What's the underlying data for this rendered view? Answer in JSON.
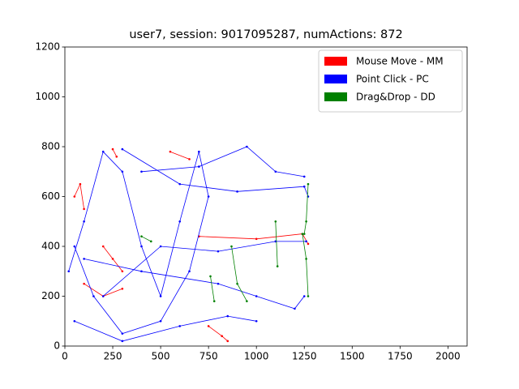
{
  "chart_data": {
    "type": "line",
    "title": "user7, session: 9017095287, numActions: 872",
    "xlim": [
      0,
      2100
    ],
    "ylim": [
      0,
      1200
    ],
    "xticks": [
      0,
      250,
      500,
      750,
      1000,
      1250,
      1500,
      1750,
      2000
    ],
    "yticks": [
      0,
      200,
      400,
      600,
      800,
      1000,
      1200
    ],
    "legend": "upper right",
    "series": [
      {
        "name": "Mouse Move - MM",
        "color": "#ff0000",
        "x": [
          50,
          80,
          100,
          null,
          200,
          250,
          300,
          null,
          750,
          820,
          850,
          null,
          250,
          270,
          null,
          700,
          1000,
          1240,
          1270,
          null,
          650,
          550,
          null,
          100,
          200,
          300
        ],
        "values": [
          600,
          650,
          550,
          null,
          400,
          350,
          300,
          null,
          80,
          40,
          20,
          null,
          790,
          760,
          null,
          440,
          430,
          450,
          410,
          null,
          750,
          780,
          null,
          250,
          200,
          230
        ]
      },
      {
        "name": "Point Click - PC",
        "color": "#0000ff",
        "x": [
          20,
          100,
          200,
          300,
          400,
          500,
          600,
          700,
          750,
          650,
          500,
          300,
          150,
          50,
          null,
          300,
          600,
          900,
          1250,
          1270,
          null,
          100,
          400,
          800,
          1000,
          1200,
          1250,
          null,
          200,
          500,
          800,
          1100,
          1260,
          null,
          400,
          700,
          950,
          1100,
          1250,
          null,
          50,
          300,
          600,
          850,
          1000
        ],
        "values": [
          300,
          500,
          780,
          700,
          400,
          200,
          500,
          780,
          600,
          300,
          100,
          50,
          200,
          400,
          null,
          790,
          650,
          620,
          640,
          600,
          null,
          350,
          300,
          250,
          200,
          150,
          200,
          null,
          200,
          400,
          380,
          420,
          420,
          null,
          700,
          720,
          800,
          700,
          680,
          null,
          100,
          20,
          80,
          120,
          100
        ]
      },
      {
        "name": "Drag&Drop - DD",
        "color": "#008000",
        "x": [
          1240,
          1260,
          1270,
          null,
          1270,
          1260,
          1250,
          null,
          1100,
          1110,
          null,
          870,
          900,
          950,
          null,
          760,
          780,
          null,
          400,
          450
        ],
        "values": [
          450,
          350,
          200,
          null,
          650,
          500,
          450,
          null,
          500,
          320,
          null,
          400,
          250,
          180,
          null,
          280,
          180,
          null,
          440,
          420
        ]
      }
    ]
  }
}
